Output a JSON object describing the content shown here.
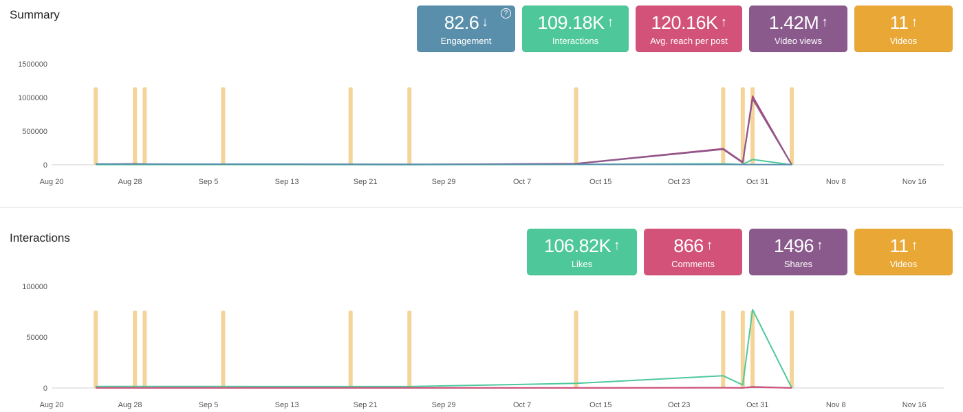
{
  "summary": {
    "title": "Summary",
    "cards": [
      {
        "value": "82.6",
        "arrow": "↓",
        "label": "Engagement",
        "color": "#5a8fab",
        "help": "?"
      },
      {
        "value": "109.18K",
        "arrow": "↑",
        "label": "Interactions",
        "color": "#4ec89b"
      },
      {
        "value": "120.16K",
        "arrow": "↑",
        "label": "Avg. reach per post",
        "color": "#d2527a"
      },
      {
        "value": "1.42M",
        "arrow": "↑",
        "label": "Video views",
        "color": "#8a5a8c"
      },
      {
        "value": "11",
        "arrow": "↑",
        "label": "Videos",
        "color": "#e9a736"
      }
    ]
  },
  "interactions": {
    "title": "Interactions",
    "cards": [
      {
        "value": "106.82K",
        "arrow": "↑",
        "label": "Likes",
        "color": "#4ec89b"
      },
      {
        "value": "866",
        "arrow": "↑",
        "label": "Comments",
        "color": "#d2527a"
      },
      {
        "value": "1496",
        "arrow": "↑",
        "label": "Shares",
        "color": "#8a5a8c"
      },
      {
        "value": "11",
        "arrow": "↑",
        "label": "Videos",
        "color": "#e9a736"
      }
    ]
  },
  "chart_data": [
    {
      "type": "line",
      "x_tick_labels": [
        "Aug 20",
        "Aug 28",
        "Sep 5",
        "Sep 13",
        "Sep 21",
        "Sep 29",
        "Oct 7",
        "Oct 15",
        "Oct 23",
        "Oct 31",
        "Nov 8",
        "Nov 16"
      ],
      "x_tick_days": [
        0,
        8,
        16,
        24,
        32,
        40,
        48,
        56,
        64,
        72,
        80,
        88
      ],
      "xlim_days": [
        0,
        91
      ],
      "ylim": [
        0,
        1500000
      ],
      "y_ticks": [
        0,
        500000,
        1000000,
        1500000
      ],
      "y_tick_labels": [
        "0",
        "500000",
        "1000000",
        "1500000"
      ],
      "video_bar_height": 1150000,
      "video_bar_color": "#f5d49a",
      "video_days": [
        4.5,
        8.5,
        9.5,
        17.5,
        30.5,
        36.5,
        53.5,
        68.5,
        70.5,
        71.5,
        75.5
      ],
      "series": [
        {
          "color": "#b0447c",
          "points": [
            [
              4.5,
              8000
            ],
            [
              8.5,
              15000
            ],
            [
              9.5,
              10000
            ],
            [
              17.5,
              6000
            ],
            [
              30.5,
              5000
            ],
            [
              36.5,
              4000
            ],
            [
              53.5,
              18000
            ],
            [
              68.5,
              240000
            ],
            [
              70.5,
              40000
            ],
            [
              71.5,
              1020000
            ],
            [
              75.5,
              0
            ]
          ]
        },
        {
          "color": "#8a5a8c",
          "points": [
            [
              4.5,
              6000
            ],
            [
              8.5,
              12000
            ],
            [
              9.5,
              8000
            ],
            [
              17.5,
              5000
            ],
            [
              30.5,
              4000
            ],
            [
              36.5,
              3000
            ],
            [
              53.5,
              15000
            ],
            [
              68.5,
              230000
            ],
            [
              70.5,
              30000
            ],
            [
              71.5,
              980000
            ],
            [
              75.5,
              0
            ]
          ]
        },
        {
          "color": "#4ec89b",
          "points": [
            [
              4.5,
              2000
            ],
            [
              8.5,
              2000
            ],
            [
              9.5,
              2000
            ],
            [
              17.5,
              2000
            ],
            [
              30.5,
              2000
            ],
            [
              36.5,
              2000
            ],
            [
              53.5,
              5000
            ],
            [
              68.5,
              15000
            ],
            [
              70.5,
              5000
            ],
            [
              71.5,
              80000
            ],
            [
              75.5,
              0
            ]
          ]
        },
        {
          "color": "#5a8fab",
          "points": [
            [
              4.5,
              12000
            ],
            [
              8.5,
              11000
            ],
            [
              9.5,
              11000
            ],
            [
              17.5,
              10000
            ],
            [
              30.5,
              9000
            ],
            [
              36.5,
              8000
            ],
            [
              53.5,
              7000
            ],
            [
              68.5,
              5000
            ],
            [
              70.5,
              4000
            ],
            [
              71.5,
              4000
            ],
            [
              75.5,
              3000
            ]
          ]
        }
      ]
    },
    {
      "type": "line",
      "x_tick_labels": [
        "Aug 20",
        "Aug 28",
        "Sep 5",
        "Sep 13",
        "Sep 21",
        "Sep 29",
        "Oct 7",
        "Oct 15",
        "Oct 23",
        "Oct 31",
        "Nov 8",
        "Nov 16"
      ],
      "x_tick_days": [
        0,
        8,
        16,
        24,
        32,
        40,
        48,
        56,
        64,
        72,
        80,
        88
      ],
      "xlim_days": [
        0,
        91
      ],
      "ylim": [
        0,
        100000
      ],
      "y_ticks": [
        0,
        50000,
        100000
      ],
      "y_tick_labels": [
        "0",
        "50000",
        "100000"
      ],
      "video_bar_height": 76000,
      "video_bar_color": "#f5d49a",
      "video_days": [
        4.5,
        8.5,
        9.5,
        17.5,
        30.5,
        36.5,
        53.5,
        68.5,
        70.5,
        71.5,
        75.5
      ],
      "series": [
        {
          "color": "#4ec89b",
          "points": [
            [
              4.5,
              1500
            ],
            [
              8.5,
              1500
            ],
            [
              9.5,
              1500
            ],
            [
              17.5,
              1500
            ],
            [
              30.5,
              1400
            ],
            [
              36.5,
              1400
            ],
            [
              53.5,
              4500
            ],
            [
              68.5,
              12000
            ],
            [
              70.5,
              3000
            ],
            [
              71.5,
              77000
            ],
            [
              75.5,
              0
            ]
          ]
        },
        {
          "color": "#8a5a8c",
          "points": [
            [
              4.5,
              100
            ],
            [
              8.5,
              100
            ],
            [
              9.5,
              100
            ],
            [
              17.5,
              100
            ],
            [
              30.5,
              100
            ],
            [
              36.5,
              100
            ],
            [
              53.5,
              100
            ],
            [
              68.5,
              300
            ],
            [
              70.5,
              100
            ],
            [
              71.5,
              1200
            ],
            [
              75.5,
              0
            ]
          ]
        },
        {
          "color": "#d2527a",
          "points": [
            [
              4.5,
              50
            ],
            [
              8.5,
              50
            ],
            [
              9.5,
              50
            ],
            [
              17.5,
              50
            ],
            [
              30.5,
              50
            ],
            [
              36.5,
              50
            ],
            [
              53.5,
              50
            ],
            [
              68.5,
              200
            ],
            [
              70.5,
              50
            ],
            [
              71.5,
              800
            ],
            [
              75.5,
              0
            ]
          ]
        }
      ]
    }
  ]
}
